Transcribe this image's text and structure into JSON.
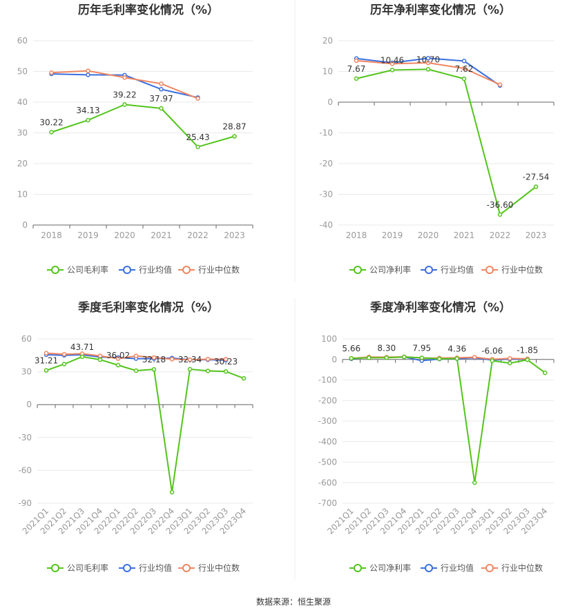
{
  "source": "数据来源：恒生聚源",
  "legend_names": {
    "gross": [
      "公司毛利率",
      "行业均值",
      "行业中位数"
    ],
    "net": [
      "公司净利率",
      "行业均值",
      "行业中位数"
    ]
  },
  "colors": {
    "company": "#52c41a",
    "industry_avg": "#3a6fe0",
    "industry_median": "#f08560"
  },
  "chart_data": [
    {
      "type": "line",
      "title": "历年毛利率变化情况（%）",
      "categories": [
        "2018",
        "2019",
        "2020",
        "2021",
        "2022",
        "2023"
      ],
      "ylim": [
        0,
        60
      ],
      "yticks": [
        0,
        10,
        20,
        30,
        40,
        50,
        60
      ],
      "series": [
        {
          "name": "公司毛利率",
          "values": [
            30.22,
            34.13,
            39.22,
            37.97,
            25.43,
            28.87
          ]
        },
        {
          "name": "行业均值",
          "values": [
            49.2,
            48.9,
            48.8,
            44.2,
            41.5,
            null
          ]
        },
        {
          "name": "行业中位数",
          "values": [
            49.6,
            50.2,
            48.0,
            46.0,
            41.2,
            null
          ]
        }
      ],
      "labels": [
        {
          "i": 0,
          "text": "30.22"
        },
        {
          "i": 1,
          "text": "34.13"
        },
        {
          "i": 2,
          "text": "39.22"
        },
        {
          "i": 3,
          "text": "37.97"
        },
        {
          "i": 4,
          "text": "25.43"
        },
        {
          "i": 5,
          "text": "28.87"
        }
      ]
    },
    {
      "type": "line",
      "title": "历年净利率变化情况（%）",
      "categories": [
        "2018",
        "2019",
        "2020",
        "2021",
        "2022",
        "2023"
      ],
      "ylim": [
        -40,
        20
      ],
      "yticks": [
        -40,
        -30,
        -20,
        -10,
        0,
        10,
        20
      ],
      "series": [
        {
          "name": "公司净利率",
          "values": [
            7.67,
            10.46,
            10.7,
            7.62,
            -36.6,
            -27.54
          ]
        },
        {
          "name": "行业均值",
          "values": [
            14.2,
            12.8,
            14.3,
            13.4,
            5.4,
            null
          ]
        },
        {
          "name": "行业中位数",
          "values": [
            13.5,
            12.5,
            12.8,
            11.0,
            5.7,
            null
          ]
        }
      ],
      "labels": [
        {
          "i": 0,
          "text": "7.67"
        },
        {
          "i": 1,
          "text": "10.46"
        },
        {
          "i": 2,
          "text": "10.70"
        },
        {
          "i": 3,
          "text": "7.62"
        },
        {
          "i": 4,
          "text": "-36.60"
        },
        {
          "i": 5,
          "text": "-27.54"
        }
      ]
    },
    {
      "type": "line",
      "title": "季度毛利率变化情况（%）",
      "categories": [
        "2021Q1",
        "2021Q2",
        "2021Q3",
        "2021Q4",
        "2022Q1",
        "2022Q2",
        "2022Q3",
        "2022Q4",
        "2023Q1",
        "2023Q2",
        "2023Q3",
        "2023Q4"
      ],
      "ylim": [
        -90,
        60
      ],
      "yticks": [
        -90,
        -60,
        -30,
        0,
        30,
        60
      ],
      "series": [
        {
          "name": "公司毛利率",
          "values": [
            31.21,
            37.0,
            43.71,
            41.0,
            36.02,
            31.0,
            32.18,
            -80.0,
            32.34,
            30.8,
            30.23,
            24.0
          ]
        },
        {
          "name": "行业均值",
          "values": [
            45.5,
            45.0,
            45.5,
            43.5,
            43.0,
            42.0,
            42.0,
            42.5,
            41.0,
            41.0,
            40.5,
            null
          ]
        },
        {
          "name": "行业中位数",
          "values": [
            47.0,
            46.0,
            46.5,
            44.5,
            42.0,
            44.5,
            43.0,
            41.5,
            41.0,
            41.5,
            41.5,
            null
          ]
        }
      ],
      "labels": [
        {
          "i": 0,
          "text": "31.21"
        },
        {
          "i": 2,
          "text": "43.71"
        },
        {
          "i": 4,
          "text": "36.02"
        },
        {
          "i": 6,
          "text": "32.18"
        },
        {
          "i": 8,
          "text": "32.34"
        },
        {
          "i": 10,
          "text": "30.23"
        }
      ]
    },
    {
      "type": "line",
      "title": "季度净利率变化情况（%）",
      "categories": [
        "2021Q1",
        "2021Q2",
        "2021Q3",
        "2021Q4",
        "2022Q1",
        "2022Q2",
        "2022Q3",
        "2022Q4",
        "2023Q1",
        "2023Q2",
        "2023Q3",
        "2023Q4"
      ],
      "ylim": [
        -700,
        100
      ],
      "yticks": [
        -700,
        -600,
        -500,
        -400,
        -300,
        -200,
        -100,
        0,
        100
      ],
      "series": [
        {
          "name": "公司净利率",
          "values": [
            5.66,
            8.0,
            8.3,
            12.0,
            7.95,
            3.0,
            4.36,
            -600.0,
            -6.06,
            -18.0,
            -1.85,
            -65.0
          ]
        },
        {
          "name": "行业均值",
          "values": [
            3.0,
            10.0,
            10.0,
            12.0,
            -6.0,
            2.0,
            4.0,
            8.0,
            -3.0,
            2.0,
            1.0,
            null
          ]
        },
        {
          "name": "行业中位数",
          "values": [
            5.0,
            12.0,
            11.0,
            13.0,
            7.0,
            7.0,
            8.0,
            11.0,
            1.0,
            5.0,
            3.0,
            null
          ]
        }
      ],
      "labels": [
        {
          "i": 0,
          "text": "5.66"
        },
        {
          "i": 2,
          "text": "8.30"
        },
        {
          "i": 4,
          "text": "7.95"
        },
        {
          "i": 6,
          "text": "4.36"
        },
        {
          "i": 8,
          "text": "-6.06"
        },
        {
          "i": 10,
          "text": "-1.85"
        }
      ]
    }
  ]
}
